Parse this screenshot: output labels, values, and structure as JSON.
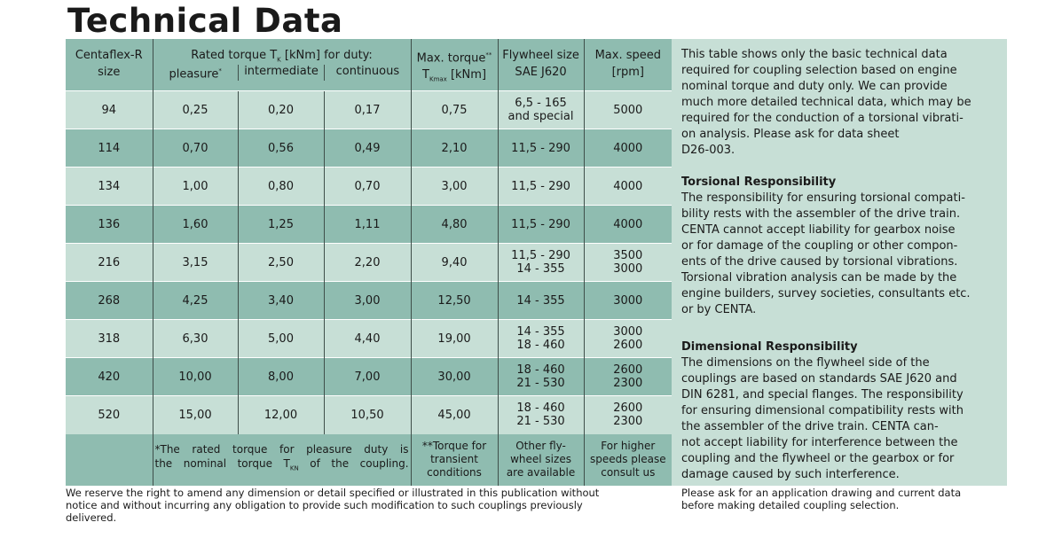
{
  "title": "Technical Data",
  "table": {
    "header": {
      "size": [
        "Centaflex-R",
        "size"
      ],
      "rated": "Rated torque T",
      "rated_sub": "K",
      "rated_tail": " [kNm] for duty:",
      "duties": [
        "pleasure",
        "intermediate",
        "continuous"
      ],
      "pleasure_mark": "*",
      "max_torque": "Max. torque",
      "max_torque_mark": "**",
      "max_torque_unit_t": "T",
      "max_torque_unit_sub": "Kmax",
      "max_torque_unit": " [kNm]",
      "flywheel": [
        "Flywheel size",
        "SAE J620"
      ],
      "speed": [
        "Max. speed",
        "[rpm]"
      ]
    },
    "rows": [
      {
        "size": "94",
        "pleasure": "0,25",
        "intermediate": "0,20",
        "continuous": "0,17",
        "max": "0,75",
        "flywheel": [
          "6,5 - 165",
          "and special"
        ],
        "speed": [
          "5000"
        ]
      },
      {
        "size": "114",
        "pleasure": "0,70",
        "intermediate": "0,56",
        "continuous": "0,49",
        "max": "2,10",
        "flywheel": [
          "11,5 - 290"
        ],
        "speed": [
          "4000"
        ]
      },
      {
        "size": "134",
        "pleasure": "1,00",
        "intermediate": "0,80",
        "continuous": "0,70",
        "max": "3,00",
        "flywheel": [
          "11,5 - 290"
        ],
        "speed": [
          "4000"
        ]
      },
      {
        "size": "136",
        "pleasure": "1,60",
        "intermediate": "1,25",
        "continuous": "1,11",
        "max": "4,80",
        "flywheel": [
          "11,5 - 290"
        ],
        "speed": [
          "4000"
        ]
      },
      {
        "size": "216",
        "pleasure": "3,15",
        "intermediate": "2,50",
        "continuous": "2,20",
        "max": "9,40",
        "flywheel": [
          "11,5 - 290",
          "14 - 355"
        ],
        "speed": [
          "3500",
          "3000"
        ]
      },
      {
        "size": "268",
        "pleasure": "4,25",
        "intermediate": "3,40",
        "continuous": "3,00",
        "max": "12,50",
        "flywheel": [
          "14 - 355"
        ],
        "speed": [
          "3000"
        ]
      },
      {
        "size": "318",
        "pleasure": "6,30",
        "intermediate": "5,00",
        "continuous": "4,40",
        "max": "19,00",
        "flywheel": [
          "14 - 355",
          "18 - 460"
        ],
        "speed": [
          "3000",
          "2600"
        ]
      },
      {
        "size": "420",
        "pleasure": "10,00",
        "intermediate": "8,00",
        "continuous": "7,00",
        "max": "30,00",
        "flywheel": [
          "18 - 460",
          "21 - 530"
        ],
        "speed": [
          "2600",
          "2300"
        ]
      },
      {
        "size": "520",
        "pleasure": "15,00",
        "intermediate": "12,00",
        "continuous": "10,50",
        "max": "45,00",
        "flywheel": [
          "18 - 460",
          "21 - 530"
        ],
        "speed": [
          "2600",
          "2300"
        ]
      }
    ],
    "footer": {
      "note_line1": "*The rated torque for pleasure duty is",
      "note_line2a": "the nominal torque T",
      "note_line2sub": "KN",
      "note_line2b": " of the coupling.",
      "transient": [
        "**Torque for",
        "transient",
        "conditions"
      ],
      "flywheel": [
        "Other fly-",
        "wheel sizes",
        "are available"
      ],
      "speed": [
        "For higher",
        "speeds please",
        "consult us"
      ]
    }
  },
  "panel": {
    "intro": [
      "This table shows only the basic technical data",
      "required for coupling selection based on engine",
      "nominal torque and duty only. We can provide",
      "much more detailed technical data, which may be",
      "required for the conduction of a torsional vibrati-",
      "on analysis. Please ask for data sheet",
      "D26-003."
    ],
    "torsional_heading": "Torsional Responsibility",
    "torsional": [
      "The responsibility for ensuring torsional compati-",
      "bility rests with the assembler of the drive train.",
      "CENTA cannot accept liability for gearbox noise",
      "or for damage of the coupling or other compon-",
      "ents of the drive caused by torsional vibrations.",
      "Torsional vibration analysis can be made by the",
      "engine builders, survey societies, consultants etc.",
      "or by CENTA."
    ],
    "dimensional_heading": "Dimensional Responsibility",
    "dimensional": [
      "The dimensions on the flywheel side of the",
      "couplings are based on standards SAE J620 and",
      "DIN 6281, and special flanges. The responsibility",
      "for ensuring dimensional compatibility rests with",
      "the assembler of the drive train. CENTA can-",
      "not accept liability for interference between the",
      "coupling and the flywheel or the gearbox or for",
      "damage caused by such interference."
    ]
  },
  "disclaimer": [
    "We reserve the right to amend any dimension or detail specified or illustrated in this publication without",
    "notice and without incurring any obligation to provide such modification to such couplings previously",
    "delivered."
  ],
  "request": [
    "Please ask for an application drawing and current data",
    "before making detailed coupling selection."
  ],
  "colors": {
    "dark": "#8fbcb0",
    "light": "#c7dfd6"
  }
}
